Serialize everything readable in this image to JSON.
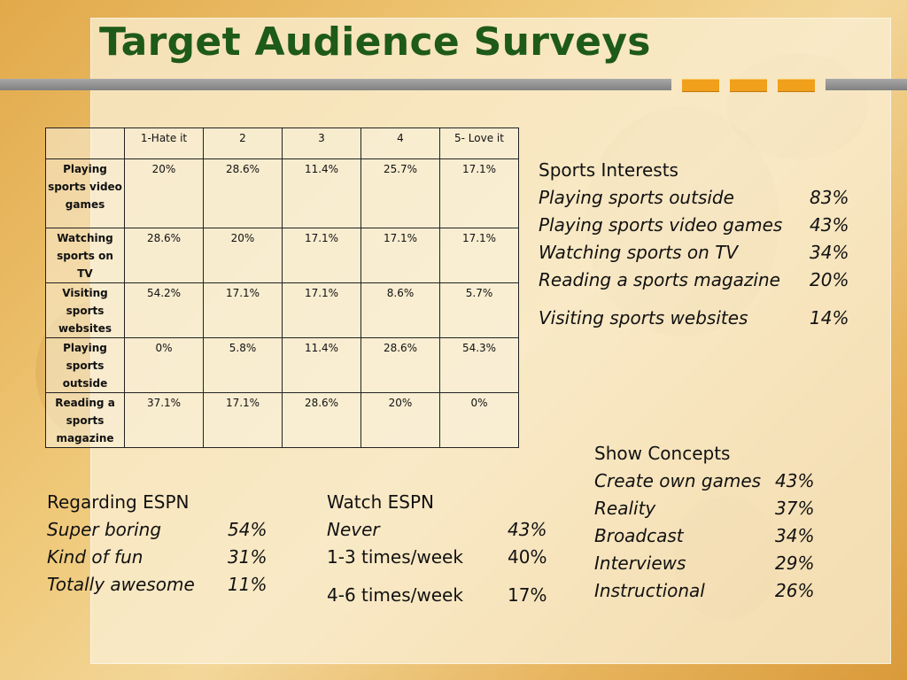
{
  "title": "Target Audience Surveys",
  "survey_table": {
    "headers": [
      "",
      "1-Hate it",
      "2",
      "3",
      "4",
      "5- Love it"
    ],
    "rows": [
      {
        "label": "Playing sports video games",
        "values": [
          "20%",
          "28.6%",
          "11.4%",
          "25.7%",
          "17.1%"
        ]
      },
      {
        "label": "Watching sports on TV",
        "values": [
          "28.6%",
          "20%",
          "17.1%",
          "17.1%",
          "17.1%"
        ]
      },
      {
        "label": "Visiting sports websites",
        "values": [
          "54.2%",
          "17.1%",
          "17.1%",
          "8.6%",
          "5.7%"
        ]
      },
      {
        "label": "Playing sports outside",
        "values": [
          "0%",
          "5.8%",
          "11.4%",
          "28.6%",
          "54.3%"
        ]
      },
      {
        "label": "Reading a sports magazine",
        "values": [
          "37.1%",
          "17.1%",
          "28.6%",
          "20%",
          "0%"
        ]
      }
    ]
  },
  "sports_interests": {
    "heading": "Sports Interests",
    "items": [
      {
        "label": "Playing sports outside",
        "value": "83%"
      },
      {
        "label": "Playing sports video games",
        "value": "43%"
      },
      {
        "label": "Watching sports on TV",
        "value": "34%"
      },
      {
        "label": "Reading a sports magazine",
        "value": "20%"
      },
      {
        "label": "Visiting sports websites",
        "value": "14%"
      }
    ]
  },
  "show_concepts": {
    "heading": "Show Concepts",
    "items": [
      {
        "label": "Create own games",
        "value": "43%"
      },
      {
        "label": "Reality",
        "value": "37%"
      },
      {
        "label": "Broadcast",
        "value": "34%"
      },
      {
        "label": "Interviews",
        "value": "29%"
      },
      {
        "label": "Instructional",
        "value": "26%"
      }
    ]
  },
  "regarding_espn": {
    "heading": "Regarding ESPN",
    "items": [
      {
        "label": "Super boring",
        "value": "54%"
      },
      {
        "label": "Kind of fun",
        "value": "31%"
      },
      {
        "label": "Totally awesome",
        "value": "11%"
      }
    ]
  },
  "watch_espn": {
    "heading": "Watch ESPN",
    "items": [
      {
        "label": "Never",
        "value": "43%"
      },
      {
        "label": "1-3 times/week",
        "value": "40%"
      },
      {
        "label": "4-6 times/week",
        "value": "17%"
      }
    ]
  },
  "colors": {
    "title": "#1e5a1a",
    "accent": "#f0a01a",
    "bar": "#8a8a8a"
  }
}
